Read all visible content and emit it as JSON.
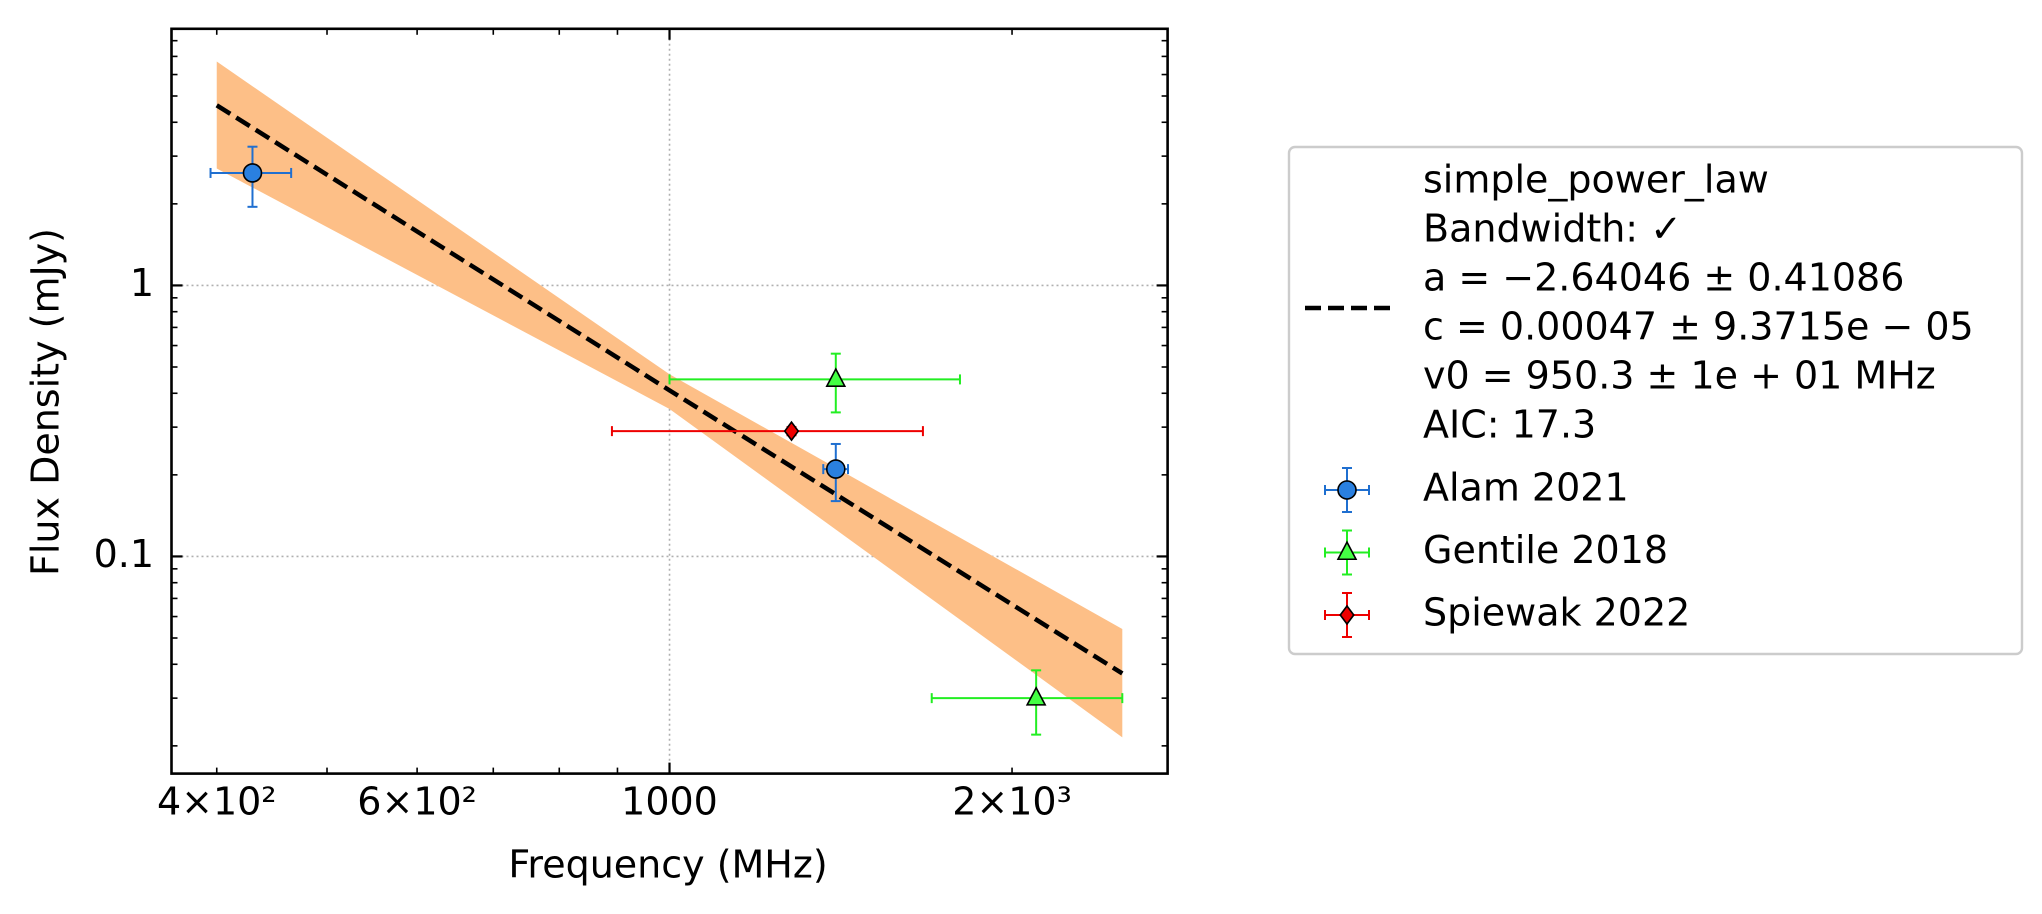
{
  "chart_data": {
    "type": "errorbar",
    "xlabel": "Frequency (MHz)",
    "ylabel": "Flux Density (mJy)",
    "xscale": "log",
    "yscale": "log",
    "xlim": [
      365,
      2740
    ],
    "ylim": [
      0.0158,
      8.85
    ],
    "xticks": [
      1000
    ],
    "xticks_minor": [
      {
        "value": 400,
        "label": "4×10²"
      },
      500,
      {
        "value": 600,
        "label": "6×10²"
      },
      700,
      800,
      900,
      {
        "value": 2000,
        "label": "2×10³"
      }
    ],
    "yticks": [
      0.1,
      1
    ],
    "yticks_minor": [
      0.02,
      0.03,
      0.04,
      0.05,
      0.06,
      0.07,
      0.08,
      0.09,
      0.2,
      0.3,
      0.4,
      0.5,
      0.6,
      0.7,
      0.8,
      0.9,
      2,
      3,
      4,
      5,
      6,
      7,
      8
    ],
    "grid": true,
    "legend": "outside-right",
    "fit": {
      "label_lines": [
        "simple_power_law",
        "Bandwidth: ✓",
        "a = −2.64046 ± 0.41086",
        "c = 0.00047 ± 9.3715e − 05",
        "v0 = 950.3 ± 1e + 01 MHz",
        "AIC: 17.3"
      ],
      "color": "#000000",
      "x": [
        400,
        1000,
        2500
      ],
      "values": [
        4.62,
        0.41,
        0.037
      ],
      "band": {
        "color": "#fdbf87",
        "lower": [
          2.7,
          0.35,
          0.0215
        ],
        "upper": [
          6.7,
          0.47,
          0.054
        ]
      }
    },
    "series": [
      {
        "name": "Alam 2021",
        "color": "#1f6fd0",
        "fill": "#2a80e0",
        "marker": "circle",
        "x": [
          430,
          1400
        ],
        "values": [
          2.6,
          0.21
        ],
        "xerr": [
          35,
          35
        ],
        "yerr": [
          0.65,
          0.05
        ]
      },
      {
        "name": "Gentile 2018",
        "color": "#22ee22",
        "fill": "#44ff44",
        "marker": "triangle",
        "x": [
          1400,
          2100
        ],
        "values": [
          0.45,
          0.03
        ],
        "xerr": [
          400,
          400
        ],
        "yerr": [
          0.11,
          0.008
        ]
      },
      {
        "name": "Spiewak 2022",
        "color": "#ee0000",
        "fill": "#ee0000",
        "marker": "diamond",
        "x": [
          1280
        ],
        "values": [
          0.29
        ],
        "xerr": [
          390
        ],
        "yerr": [
          0.01
        ]
      }
    ]
  }
}
